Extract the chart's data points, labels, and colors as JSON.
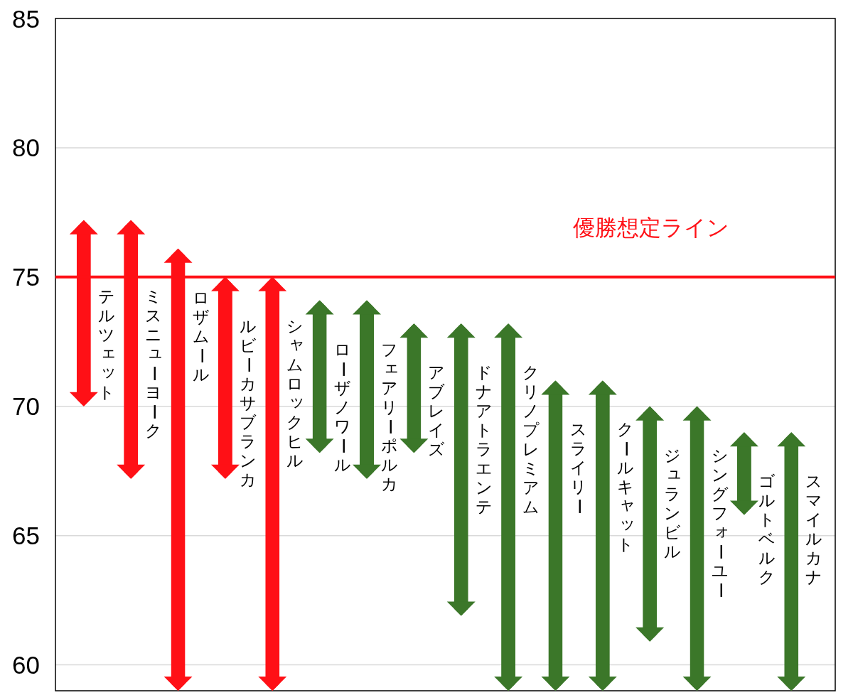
{
  "chart_data": {
    "type": "bar",
    "categories": [
      "テルツェット",
      "ミスニューヨーク",
      "ロザムール",
      "ルビーカサブランカ",
      "シャムロックヒル",
      "ローザノワール",
      "フェアリーポルカ",
      "アブレイズ",
      "ドナアトラエンテ",
      "クリノプレミアム",
      "スライリー",
      "クールキャット",
      "ジュランビル",
      "シングフォーユー",
      "ゴルトベルク",
      "スマイルカナ"
    ],
    "base": [
      70.0,
      67.2,
      59.0,
      67.2,
      59.0,
      68.2,
      67.2,
      68.2,
      61.9,
      59.0,
      59.0,
      59.0,
      60.9,
      59.0,
      65.8,
      59.0
    ],
    "values": [
      7.2,
      10.0,
      17.1,
      7.8,
      16.0,
      5.9,
      6.9,
      5.0,
      11.3,
      14.2,
      12.0,
      12.0,
      9.1,
      11.0,
      3.2,
      10.0
    ],
    "colors": [
      "#ff1016",
      "#ff1016",
      "#ff1016",
      "#ff1016",
      "#ff1016",
      "#3b7729",
      "#3b7729",
      "#3b7729",
      "#3b7729",
      "#3b7729",
      "#3b7729",
      "#3b7729",
      "#3b7729",
      "#3b7729",
      "#3b7729",
      "#3b7729"
    ],
    "ylim": [
      59,
      85
    ],
    "yticks": [
      60,
      65,
      70,
      75,
      80,
      85
    ],
    "grid": "y",
    "ref_lines": [
      {
        "axis": "y",
        "value": 75,
        "label": "優勝想定ライン",
        "color": "#ff1016"
      }
    ]
  }
}
